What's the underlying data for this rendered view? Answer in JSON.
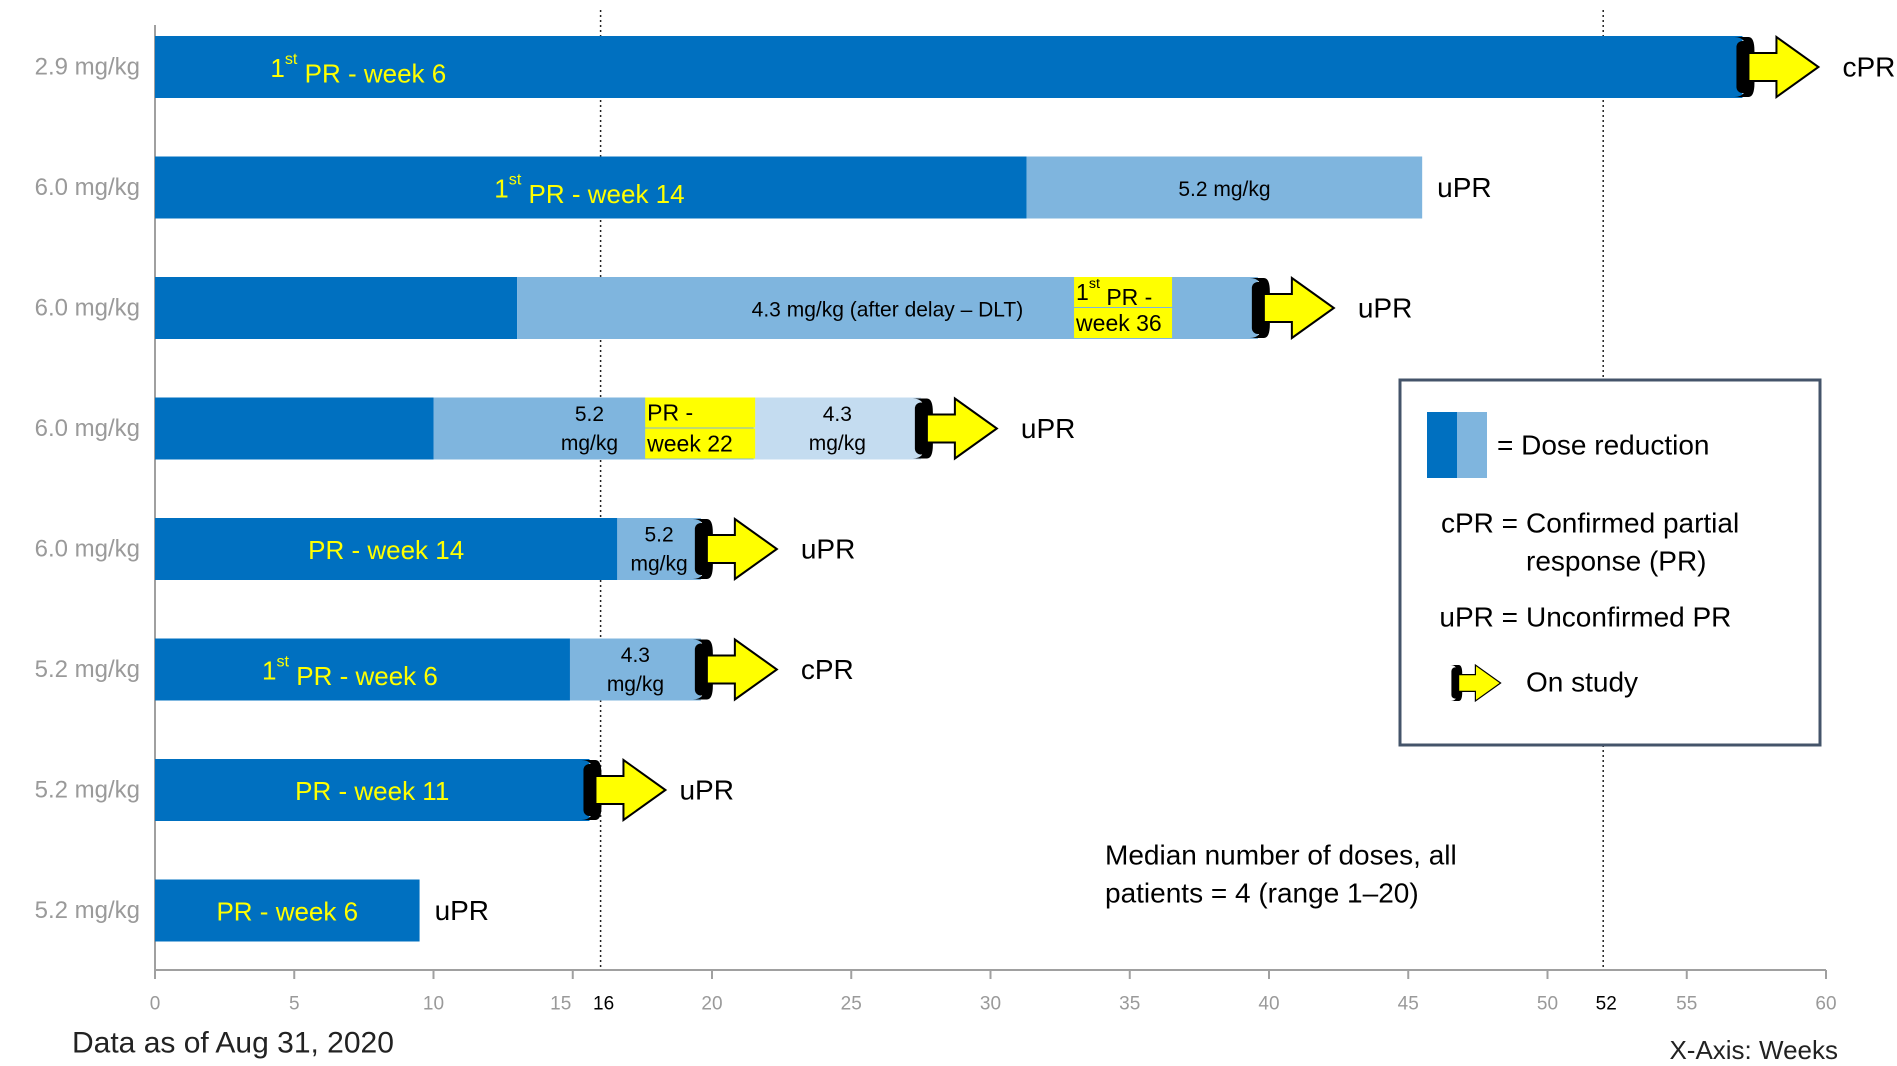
{
  "chart_data": {
    "type": "bar",
    "orientation": "horizontal",
    "xlabel": "X-Axis: Weeks",
    "xlim": [
      0,
      60
    ],
    "x_ticks": [
      0,
      5,
      10,
      15,
      20,
      25,
      30,
      35,
      40,
      45,
      50,
      55,
      60
    ],
    "reference_lines": [
      {
        "x": 16,
        "label": "16"
      },
      {
        "x": 52,
        "label": "52"
      }
    ],
    "colors": {
      "initial_dose": "#0070c0",
      "reduced_dose": "#7fb5de",
      "reduced_dose_2": "#c4dcf0",
      "arrow": "#ffff00",
      "highlight": "#ffff00",
      "bar_text": "#ffff00"
    },
    "patients": [
      {
        "dose": "2.9 mg/kg",
        "segments": [
          {
            "start": 0,
            "end": 57,
            "level": "initial",
            "label": "",
            "response_marker": {
              "prefix": "1",
              "sup": "st",
              "rest": " PR - week 6"
            }
          }
        ],
        "on_study": true,
        "response": "cPR"
      },
      {
        "dose": "6.0 mg/kg",
        "segments": [
          {
            "start": 0,
            "end": 31.3,
            "level": "initial",
            "label": "",
            "response_marker": {
              "prefix": "1",
              "sup": "st",
              "rest": " PR - week 14"
            }
          },
          {
            "start": 31.3,
            "end": 45.5,
            "level": "reduced",
            "label": "5.2 mg/kg"
          }
        ],
        "on_study": false,
        "response": "uPR"
      },
      {
        "dose": "6.0 mg/kg",
        "segments": [
          {
            "start": 0,
            "end": 13,
            "level": "initial",
            "label": ""
          },
          {
            "start": 13,
            "end": 39.6,
            "level": "reduced",
            "label": "4.3 mg/kg (after delay – DLT)"
          }
        ],
        "highlighted_marker": {
          "line1_prefix": "1",
          "line1_sup": "st",
          "line1_rest": " PR -",
          "line2": "week 36",
          "at": 33
        },
        "on_study": true,
        "response": "uPR"
      },
      {
        "dose": "6.0 mg/kg",
        "segments": [
          {
            "start": 0,
            "end": 10,
            "level": "initial",
            "label": ""
          },
          {
            "start": 10,
            "end": 21.5,
            "level": "reduced",
            "label_line1": "5.2",
            "label_line2": "mg/kg"
          },
          {
            "start": 21.5,
            "end": 27.5,
            "level": "reduced_2",
            "label_line1": "4.3",
            "label_line2": "mg/kg"
          }
        ],
        "highlighted_marker": {
          "line1_prefix": "PR -",
          "line1_sup": "",
          "line1_rest": "",
          "line2": "week 22",
          "at": 17.6
        },
        "on_study": true,
        "response": "uPR"
      },
      {
        "dose": "6.0 mg/kg",
        "segments": [
          {
            "start": 0,
            "end": 16.6,
            "level": "initial",
            "label": "",
            "response_marker": {
              "prefix": "PR - week 14",
              "sup": "",
              "rest": ""
            }
          },
          {
            "start": 16.6,
            "end": 19.6,
            "level": "reduced",
            "label_line1": "5.2",
            "label_line2": "mg/kg"
          }
        ],
        "on_study": true,
        "response": "uPR"
      },
      {
        "dose": "5.2 mg/kg",
        "segments": [
          {
            "start": 0,
            "end": 14.9,
            "level": "initial",
            "label": "",
            "response_marker": {
              "prefix": "1",
              "sup": "st",
              "rest": " PR - week 6"
            }
          },
          {
            "start": 14.9,
            "end": 19.6,
            "level": "reduced",
            "label_line1": "4.3",
            "label_line2": "mg/kg"
          }
        ],
        "on_study": true,
        "response": "cPR"
      },
      {
        "dose": "5.2 mg/kg",
        "segments": [
          {
            "start": 0,
            "end": 15.6,
            "level": "initial",
            "label": "",
            "response_marker": {
              "prefix": "PR - week 11",
              "sup": "",
              "rest": ""
            }
          }
        ],
        "on_study": true,
        "response": "uPR"
      },
      {
        "dose": "5.2 mg/kg",
        "segments": [
          {
            "start": 0,
            "end": 9.5,
            "level": "initial",
            "label": "",
            "response_marker": {
              "prefix": "PR - week 6",
              "sup": "",
              "rest": ""
            }
          }
        ],
        "on_study": false,
        "response": "uPR"
      }
    ],
    "annotation_lines": [
      "Median number of doses, all",
      "patients = 4 (range 1–20)"
    ],
    "legend": {
      "placement": "right",
      "items": [
        {
          "key": "",
          "text": "= Dose reduction"
        },
        {
          "key": "cPR =",
          "text": "Confirmed partial",
          "text2": "response (PR)"
        },
        {
          "key": "uPR =",
          "text": "Unconfirmed PR"
        },
        {
          "key": "",
          "text": "On study",
          "icon": "on-study-arrow-icon"
        }
      ]
    },
    "footnote": "Data as of Aug 31, 2020"
  }
}
